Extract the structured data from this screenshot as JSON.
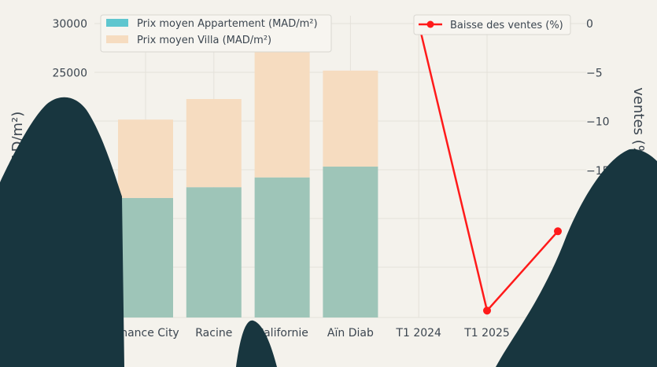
{
  "chart_data": {
    "type": "bar",
    "categories": [
      "Finance City",
      "Racine",
      "Californie",
      "Aïn Diab",
      "T1 2024",
      "T1 2025"
    ],
    "series": [
      {
        "name": "Prix moyen Appartement (MAD/m²)",
        "type": "bar",
        "axis": "left",
        "color": "#9ec5b8",
        "values": [
          12200,
          13300,
          14300,
          15400,
          null,
          null
        ]
      },
      {
        "name": "Prix moyen Villa (MAD/m²)",
        "type": "bar",
        "axis": "left",
        "color": "#f6dcc0",
        "values": [
          8000,
          9000,
          13500,
          9800,
          null,
          null
        ]
      },
      {
        "name": "Baisse des ventes (%)",
        "type": "line",
        "axis": "right",
        "color": "#ff1a1a",
        "values": [
          null,
          null,
          null,
          null,
          0,
          -29.3
        ]
      }
    ],
    "line_extra_point": {
      "after_category": "T1 2025",
      "value": -21.2
    },
    "y_left": {
      "label": "(MAD/m²)",
      "ticks": [
        25000,
        30000
      ],
      "lim": [
        0,
        30000
      ]
    },
    "y_right": {
      "label": "ventes (%)",
      "ticks": [
        0,
        -5,
        -10,
        -15
      ],
      "lim": [
        -30,
        0
      ]
    },
    "xlabel": "",
    "legend_left": [
      "Prix moyen Appartement (MAD/m²)",
      "Prix moyen Villa (MAD/m²)"
    ],
    "legend_right": [
      "Baisse des ventes (%)"
    ],
    "grid": true
  }
}
